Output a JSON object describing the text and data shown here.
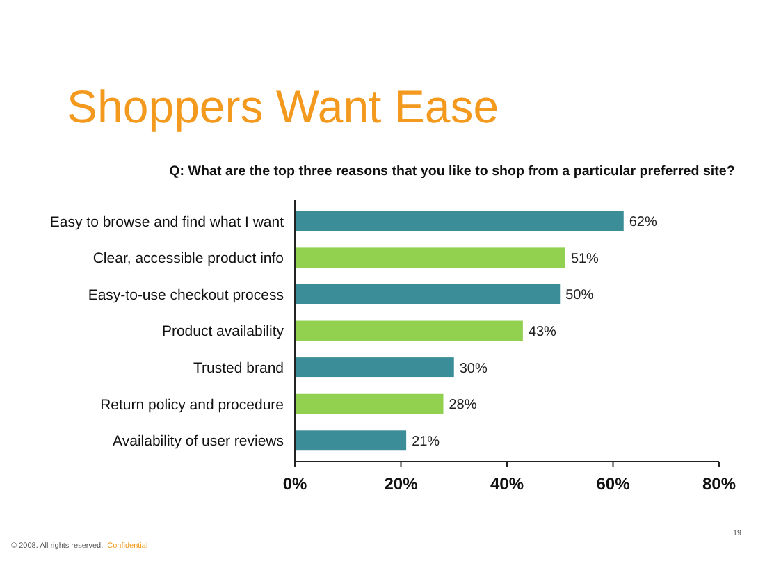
{
  "chart_data": {
    "type": "bar",
    "orientation": "horizontal",
    "title": "Shoppers Want Ease",
    "subtitle": "Q: What are the top three reasons that you like to shop from a particular preferred site?",
    "categories": [
      "Easy to browse and find what I want",
      "Clear, accessible product info",
      "Easy-to-use checkout process",
      "Product availability",
      "Trusted brand",
      "Return policy and procedure",
      "Availability of user reviews"
    ],
    "values": [
      62,
      51,
      50,
      43,
      30,
      28,
      21
    ],
    "colors": [
      "#3b8d97",
      "#92d050",
      "#3b8d97",
      "#92d050",
      "#3b8d97",
      "#92d050",
      "#3b8d97"
    ],
    "value_labels": [
      "62%",
      "51%",
      "50%",
      "43%",
      "30%",
      "28%",
      "21%"
    ],
    "xlim": [
      0,
      80
    ],
    "xticks": [
      {
        "value": 0,
        "label": "0%"
      },
      {
        "value": 20,
        "label": "20%"
      },
      {
        "value": 40,
        "label": "40%"
      },
      {
        "value": 60,
        "label": "60%"
      },
      {
        "value": 80,
        "label": "80%"
      }
    ],
    "grid": false,
    "annotations": [
      "© 2008. All rights reserved.",
      "Confidential",
      "19"
    ]
  }
}
